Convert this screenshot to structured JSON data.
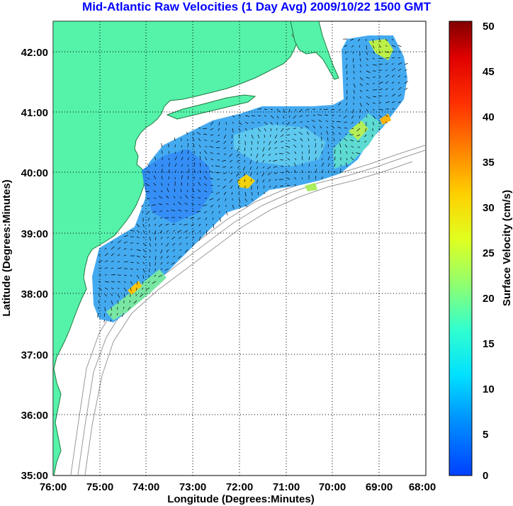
{
  "title": "Mid-Atlantic Raw Velocities (1 Day Avg) 2009/10/22 1500 GMT",
  "map": {
    "xlabel": "Longitude (Degrees:Minutes)",
    "ylabel": "Latitude (Degrees:Minutes)",
    "x_ticks": [
      "76:00",
      "75:00",
      "74:00",
      "73:00",
      "72:00",
      "71:00",
      "70:00",
      "69:00",
      "68:00"
    ],
    "y_ticks": [
      "42:00",
      "41:00",
      "40:00",
      "39:00",
      "38:00",
      "37:00",
      "36:00",
      "35:00"
    ],
    "lon_range": [
      -76,
      -68
    ],
    "lat_range": [
      35,
      42.5
    ],
    "land_color": "#55f2aa",
    "grid": "dotted"
  },
  "colorbar": {
    "label": "Surface Velocity (cm/s)",
    "ticks": [
      "0",
      "5",
      "10",
      "15",
      "20",
      "25",
      "30",
      "35",
      "40",
      "45",
      "50"
    ],
    "range": [
      0,
      50
    ],
    "colormap": "jet"
  }
}
